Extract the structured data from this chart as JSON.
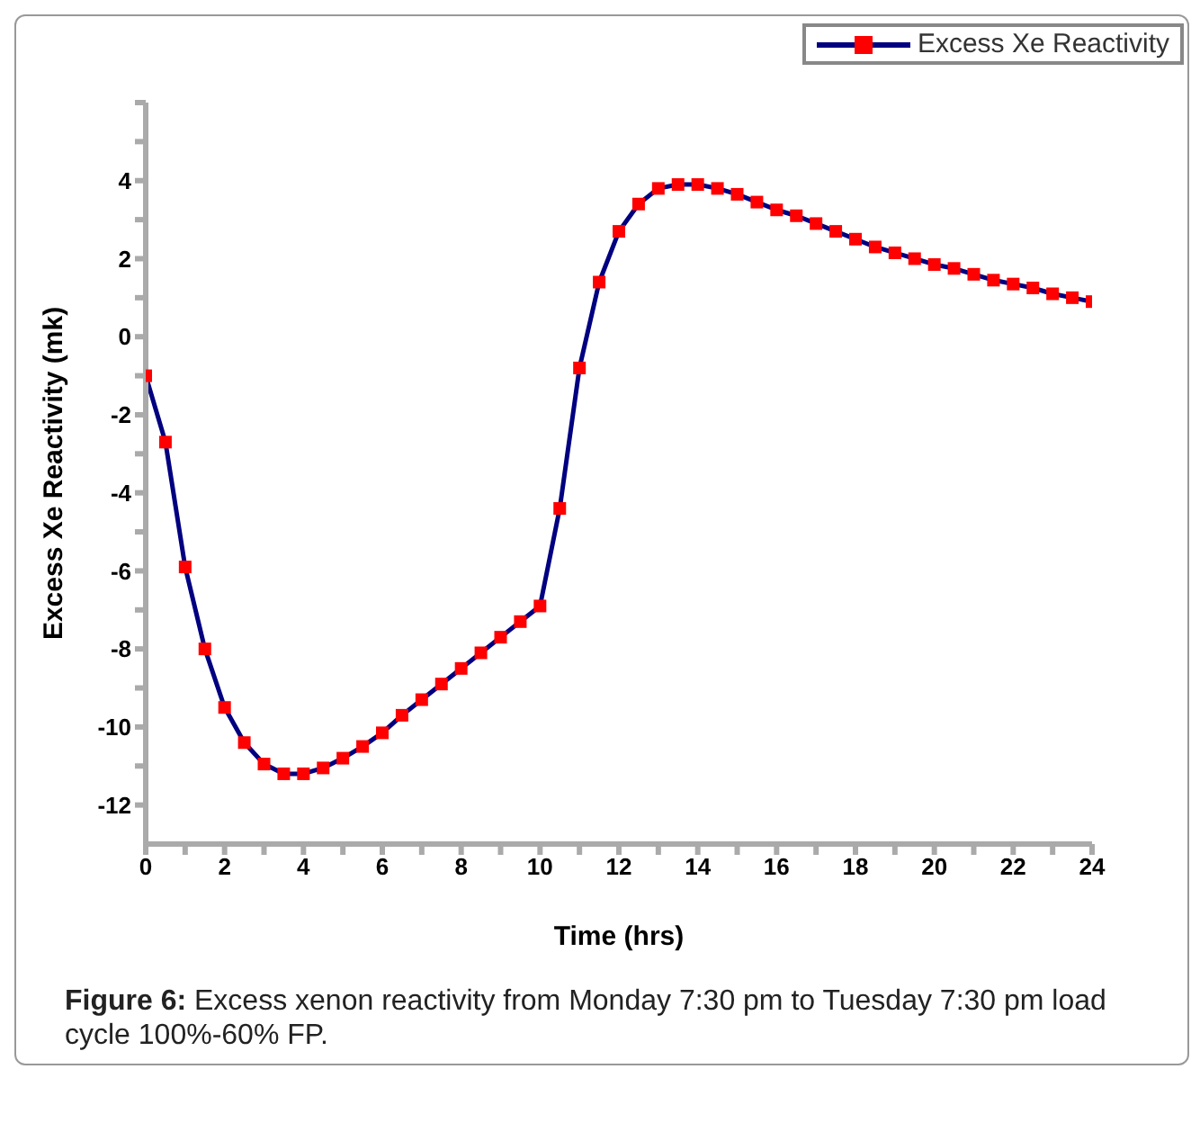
{
  "chart_data": {
    "type": "line",
    "xlabel": "Time (hrs)",
    "ylabel": "Excess Xe Reactivity (mk)",
    "annotations": [
      "Figure 6: Excess xenon reactivity from Monday 7:30 pm to Tuesday 7:30 pm load cycle 100%-60% FP."
    ],
    "x": [
      0,
      0.5,
      1,
      1.5,
      2,
      2.5,
      3,
      3.5,
      4,
      4.5,
      5,
      5.5,
      6,
      6.5,
      7,
      7.5,
      8,
      8.5,
      9,
      9.5,
      10,
      10.5,
      11,
      11.5,
      12,
      12.5,
      13,
      13.5,
      14,
      14.5,
      15,
      15.5,
      16,
      16.5,
      17,
      17.5,
      18,
      18.5,
      19,
      19.5,
      20,
      20.5,
      21,
      21.5,
      22,
      22.5,
      23,
      23.5,
      24
    ],
    "series": [
      {
        "name": "Excess Xe Reactivity",
        "color": "#000080",
        "colors": [
          "#ff0000",
          "#ff0000",
          "#ff0000",
          "#ff0000",
          "#ff0000",
          "#ff0000",
          "#ff0000",
          "#ff0000",
          "#ff0000",
          "#ff0000",
          "#ff0000",
          "#ff0000",
          "#ff0000",
          "#ff0000",
          "#ff0000",
          "#ff0000",
          "#ff0000",
          "#ff0000",
          "#ff0000",
          "#ff0000",
          "#ff0000",
          "#ff0000",
          "#ff0000",
          "#ff0000",
          "#ff0000",
          "#ff0000",
          "#ff0000",
          "#ff0000",
          "#ff0000",
          "#ff0000",
          "#ff0000",
          "#ff0000",
          "#ff0000",
          "#ff0000",
          "#ff0000",
          "#ff0000",
          "#ff0000",
          "#ff0000",
          "#ff0000",
          "#ff0000",
          "#ff0000",
          "#ff0000",
          "#ff0000",
          "#ff0000",
          "#ff0000",
          "#ff0000",
          "#ff0000",
          "#ff0000",
          "#ff0000"
        ],
        "values": [
          -1,
          -2.7,
          -5.9,
          -8.0,
          -9.5,
          -10.4,
          -10.95,
          -11.2,
          -11.2,
          -11.05,
          -10.8,
          -10.5,
          -10.15,
          -9.7,
          -9.3,
          -8.9,
          -8.5,
          -8.1,
          -7.7,
          -7.3,
          -6.9,
          -4.4,
          -0.8,
          1.4,
          2.7,
          3.4,
          3.8,
          3.9,
          3.9,
          3.8,
          3.65,
          3.45,
          3.25,
          3.1,
          2.9,
          2.7,
          2.5,
          2.3,
          2.15,
          2.0,
          1.85,
          1.75,
          1.6,
          1.45,
          1.35,
          1.25,
          1.1,
          1.0,
          0.9
        ]
      }
    ],
    "xlim": [
      0,
      24
    ],
    "xticks": [
      0,
      {
        "value": 1,
        "label": null
      },
      2,
      {
        "value": 3,
        "label": null
      },
      4,
      {
        "value": 5,
        "label": null
      },
      6,
      {
        "value": 7,
        "label": null
      },
      8,
      {
        "value": 9,
        "label": null
      },
      10,
      {
        "value": 11,
        "label": null
      },
      12,
      {
        "value": 13,
        "label": null
      },
      14,
      {
        "value": 15,
        "label": null
      },
      16,
      {
        "value": 17,
        "label": null
      },
      18,
      {
        "value": 19,
        "label": null
      },
      20,
      {
        "value": 21,
        "label": null
      },
      22,
      {
        "value": 23,
        "label": null
      },
      24
    ],
    "ylim": [
      -13,
      6
    ],
    "yticks": [
      -12,
      {
        "value": -11,
        "label": null
      },
      -10,
      {
        "value": -9,
        "label": null
      },
      -8,
      {
        "value": -7,
        "label": null
      },
      -6,
      {
        "value": -5,
        "label": null
      },
      -4,
      {
        "value": -3,
        "label": null
      },
      -2,
      {
        "value": -1,
        "label": null
      },
      0,
      {
        "value": 1,
        "label": null
      },
      2,
      {
        "value": 3,
        "label": null
      },
      4,
      {
        "value": 5,
        "label": null
      },
      {
        "value": 6,
        "label": null
      }
    ],
    "grid": false,
    "legend": "top right",
    "marker": "square",
    "line_style": "solid"
  }
}
